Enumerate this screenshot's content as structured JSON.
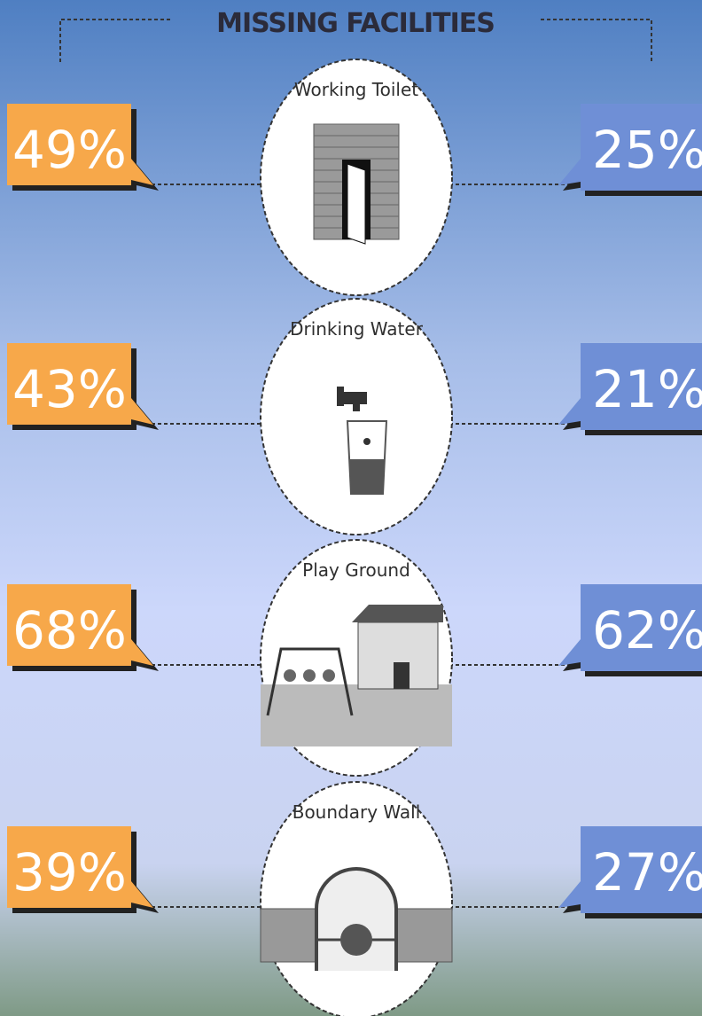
{
  "header": {
    "title": "MISSING FACILITIES"
  },
  "rows": [
    {
      "label": "Working Toilet",
      "left": "49%",
      "right": "25%"
    },
    {
      "label": "Drinking Water",
      "left": "43%",
      "right": "21%"
    },
    {
      "label": "Play Ground",
      "left": "68%",
      "right": "62%"
    },
    {
      "label": "Boundary Wall",
      "left": "39%",
      "right": "27%"
    }
  ]
}
